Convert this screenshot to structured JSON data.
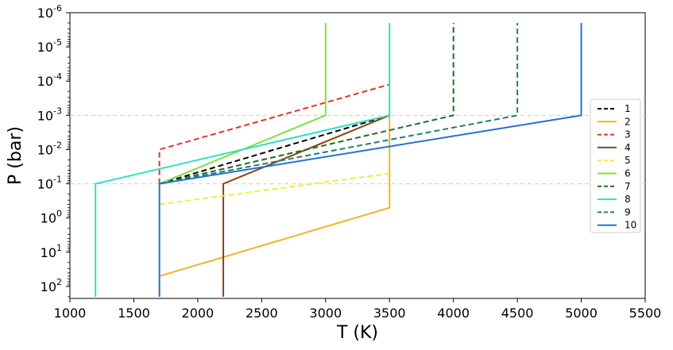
{
  "chart_data": {
    "type": "line",
    "xlabel": "T (K)",
    "ylabel": "P (bar)",
    "xlim": [
      1000,
      5500
    ],
    "ylim_log10": [
      2.35,
      -6
    ],
    "y_scale": "log, inverted",
    "grid": "horizontal dashed reference lines at 1e-3 and 1e-1",
    "reference_lines_y": [
      0.001,
      0.1
    ],
    "xticks": [
      1000,
      1500,
      2000,
      2500,
      3000,
      3500,
      4000,
      4500,
      5000,
      5500
    ],
    "xtick_labels": [
      "1000",
      "1500",
      "2000",
      "2500",
      "3000",
      "3500",
      "4000",
      "4500",
      "5000",
      "5500"
    ],
    "yticks_exp": [
      -6,
      -5,
      -4,
      -3,
      -2,
      -1,
      0,
      1,
      2
    ],
    "ytick_labels": [
      "10-6",
      "10-5",
      "10-4",
      "10-3",
      "10-2",
      "10-1",
      "100",
      "101",
      "102"
    ],
    "legend_position": "center-right",
    "series": [
      {
        "name": "1",
        "color": "#000000",
        "dash": true,
        "x": [
          1700,
          3500
        ],
        "y": [
          0.1,
          0.001
        ]
      },
      {
        "name": "2",
        "color": "#f0b429",
        "dash": false,
        "x": [
          1700,
          1700,
          3500,
          3500
        ],
        "y": [
          200,
          50,
          0.5,
          0.001
        ]
      },
      {
        "name": "3",
        "color": "#e0352b",
        "dash": true,
        "x": [
          1700,
          1700,
          3500
        ],
        "y": [
          0.1,
          0.01,
          0.000125
        ]
      },
      {
        "name": "4",
        "color": "#8b4513",
        "dash": false,
        "x": [
          2200,
          2200,
          3500
        ],
        "y": [
          200,
          0.1,
          0.001
        ]
      },
      {
        "name": "5",
        "color": "#f5ea3c",
        "dash": true,
        "x": [
          1700,
          3500
        ],
        "y": [
          0.4,
          0.05
        ]
      },
      {
        "name": "6",
        "color": "#7de03c",
        "dash": false,
        "x": [
          1700,
          3000,
          3000
        ],
        "y": [
          0.1,
          0.001,
          2e-06
        ]
      },
      {
        "name": "7",
        "color": "#1f6e1f",
        "dash": true,
        "x": [
          1700,
          4000,
          4000
        ],
        "y": [
          0.1,
          0.001,
          2e-06
        ]
      },
      {
        "name": "8",
        "color": "#2ee0c8",
        "dash": false,
        "x": [
          1200,
          1200,
          3500,
          3500
        ],
        "y": [
          200,
          0.1,
          0.001,
          2e-06
        ]
      },
      {
        "name": "9",
        "color": "#1f7f70",
        "dash": true,
        "x": [
          1700,
          4500,
          4500
        ],
        "y": [
          0.1,
          0.001,
          2e-06
        ]
      },
      {
        "name": "10",
        "color": "#2470d8",
        "dash": false,
        "x": [
          1700,
          1700,
          5000,
          5000
        ],
        "y": [
          200,
          0.1,
          0.001,
          2e-06
        ]
      }
    ]
  }
}
